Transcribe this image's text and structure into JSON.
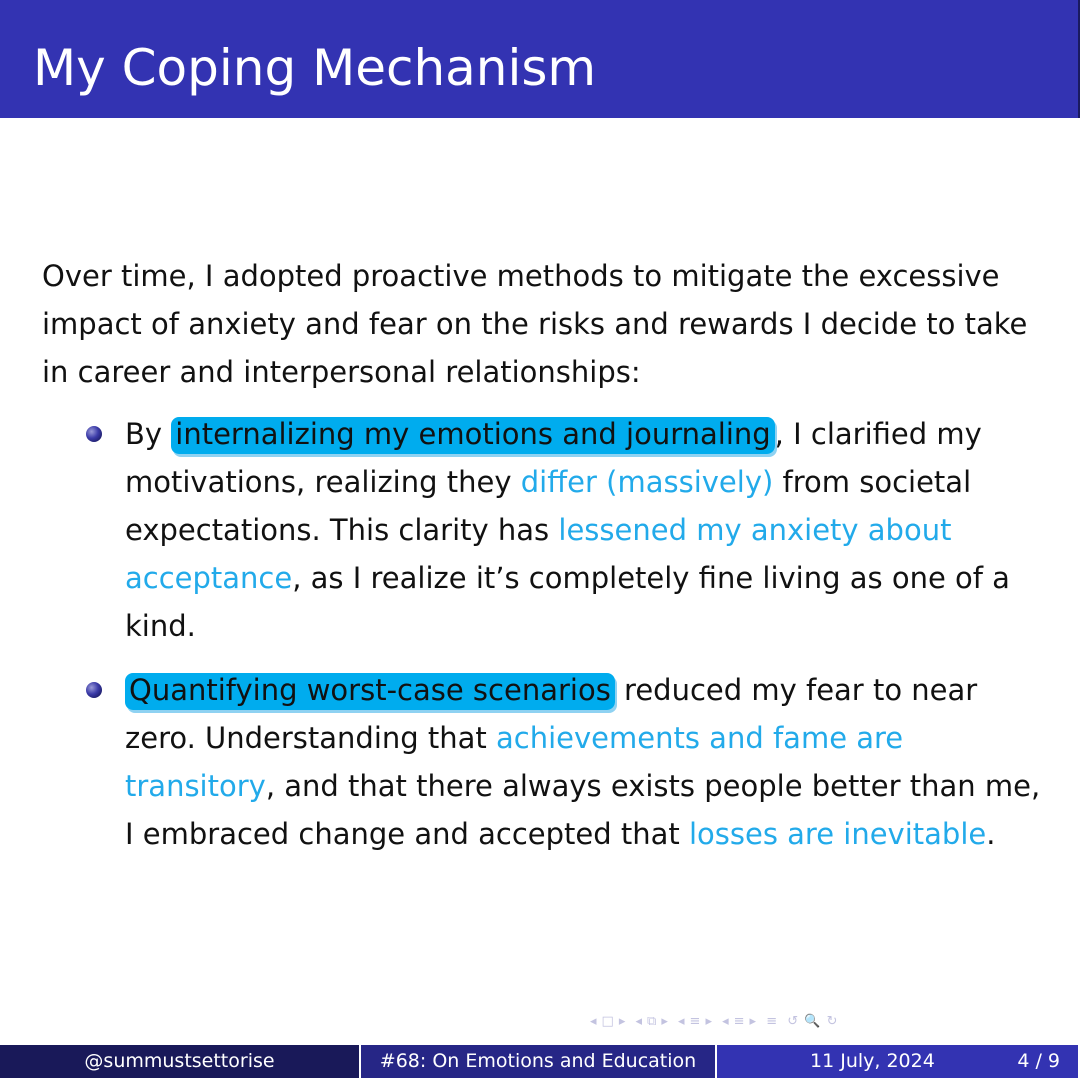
{
  "slide": {
    "title": "My Coping Mechanism",
    "intro": "Over time, I adopted proactive methods to mitigate the excessive impact of anxiety and fear on the risks and rewards I decide to take in career and interpersonal relationships:",
    "bullets": [
      {
        "parts": [
          {
            "t": "By ",
            "s": "plain"
          },
          {
            "t": "internalizing my emotions and journaling",
            "s": "highlight"
          },
          {
            "t": ", I clarified my motivations, realizing they ",
            "s": "plain"
          },
          {
            "t": "differ (massively)",
            "s": "accent"
          },
          {
            "t": " from societal expectations. This clarity has ",
            "s": "plain"
          },
          {
            "t": "lessened my anxiety about acceptance",
            "s": "accent"
          },
          {
            "t": ", as I realize it’s completely fine living as one of a kind.",
            "s": "plain"
          }
        ]
      },
      {
        "parts": [
          {
            "t": "Quantifying worst-case scenarios",
            "s": "highlight"
          },
          {
            "t": " reduced my fear to near zero. Understanding that ",
            "s": "plain"
          },
          {
            "t": "achievements and fame are transitory",
            "s": "accent"
          },
          {
            "t": ", and that there always exists people better than me, I embraced change and accepted that ",
            "s": "plain"
          },
          {
            "t": "losses are inevitable",
            "s": "accent"
          },
          {
            "t": ".",
            "s": "plain"
          }
        ]
      }
    ]
  },
  "footer": {
    "author": "@summustsettorise",
    "episode": "#68: On Emotions and Education",
    "date": "11 July, 2024",
    "page": "4 / 9"
  },
  "nav_icons": [
    "nav-prev-slide-icon",
    "nav-frame-icon",
    "nav-next-slide-icon",
    "nav-prev-section-icon",
    "nav-subsection-icon",
    "nav-next-section-icon",
    "nav-prev-sub-icon",
    "nav-section-icon",
    "nav-next-sub-icon",
    "nav-menu-icon",
    "nav-search-icon"
  ],
  "colors": {
    "title_bar": "#3333b2",
    "footer_left": "#191959",
    "footer_middle": "#262686",
    "footer_right": "#3333b2",
    "highlight": "#00acee",
    "accent_text": "#22aaea"
  }
}
